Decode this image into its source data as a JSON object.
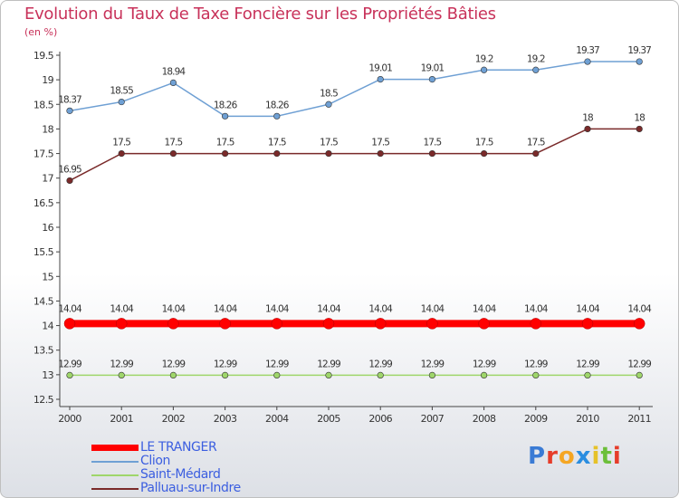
{
  "chart_data": {
    "type": "line",
    "title": "Evolution du Taux de Taxe Foncière sur les Propriétés Bâties",
    "subtitle": "(en %)",
    "xlabel": "",
    "ylabel": "(en %)",
    "ylim": [
      12.5,
      19.5
    ],
    "yticks": [
      "12.5",
      "13",
      "13.5",
      "14",
      "14.5",
      "15",
      "15.5",
      "16",
      "16.5",
      "17",
      "17.5",
      "18",
      "18.5",
      "19",
      "19.5"
    ],
    "grid": false,
    "legend_position": "bottom-left",
    "x": [
      "2000",
      "2001",
      "2002",
      "2003",
      "2004",
      "2005",
      "2006",
      "2007",
      "2008",
      "2009",
      "2010",
      "2011"
    ],
    "series": [
      {
        "name": "LE TRANGER",
        "color": "#ff0000",
        "values": [
          14.04,
          14.04,
          14.04,
          14.04,
          14.04,
          14.04,
          14.04,
          14.04,
          14.04,
          14.04,
          14.04,
          14.04
        ],
        "labels": [
          "14.04",
          "14.04",
          "14.04",
          "14.04",
          "14.04",
          "14.04",
          "14.04",
          "14.04",
          "14.04",
          "14.04",
          "14.04",
          "14.04"
        ]
      },
      {
        "name": "Clion",
        "color": "#6fa0d4",
        "values": [
          18.37,
          18.55,
          18.94,
          18.26,
          18.26,
          18.5,
          19.01,
          19.01,
          19.2,
          19.2,
          19.37,
          19.37
        ],
        "labels": [
          "18.37",
          "18.55",
          "18.94",
          "18.26",
          "18.26",
          "18.5",
          "19.01",
          "19.01",
          "19.2",
          "19.2",
          "19.37",
          "19.37"
        ]
      },
      {
        "name": "Saint-Médard",
        "color": "#9fd66b",
        "values": [
          12.99,
          12.99,
          12.99,
          12.99,
          12.99,
          12.99,
          12.99,
          12.99,
          12.99,
          12.99,
          12.99,
          12.99
        ],
        "labels": [
          "12.99",
          "12.99",
          "12.99",
          "12.99",
          "12.99",
          "12.99",
          "12.99",
          "12.99",
          "12.99",
          "12.99",
          "12.99",
          "12.99"
        ]
      },
      {
        "name": "Palluau-sur-Indre",
        "color": "#7a2a2a",
        "values": [
          16.95,
          17.5,
          17.5,
          17.5,
          17.5,
          17.5,
          17.5,
          17.5,
          17.5,
          17.5,
          18,
          18
        ],
        "labels": [
          "16.95",
          "17.5",
          "17.5",
          "17.5",
          "17.5",
          "17.5",
          "17.5",
          "17.5",
          "17.5",
          "17.5",
          "18",
          "18"
        ]
      }
    ]
  },
  "logo": {
    "letters": [
      "P",
      "r",
      "o",
      "x",
      "i",
      "t",
      "i"
    ],
    "colors": [
      "#3a7bd5",
      "#e63c2a",
      "#f5a623",
      "#2a8de0",
      "#e6c229",
      "#6cbf3a",
      "#e63c2a"
    ]
  }
}
